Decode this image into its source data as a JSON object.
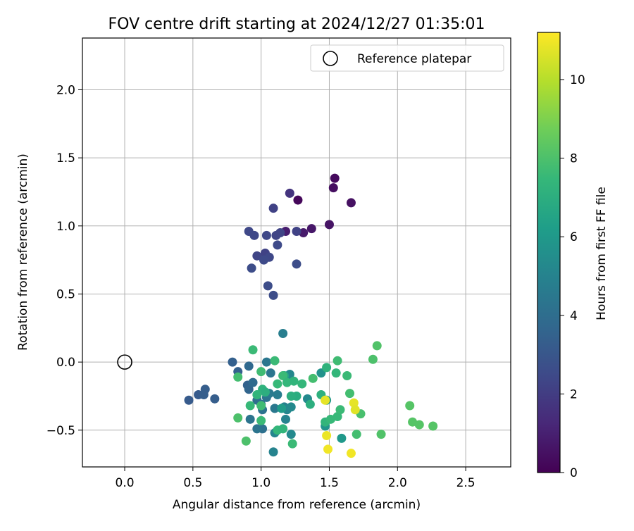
{
  "chart_data": {
    "type": "scatter",
    "title": "FOV centre drift starting at 2024/12/27 01:35:01",
    "xlabel": "Angular distance from reference (arcmin)",
    "ylabel": "Rotation from reference (arcmin)",
    "xlim": [
      -0.31,
      2.83
    ],
    "ylim": [
      -0.77,
      2.38
    ],
    "xticks": [
      0.0,
      0.5,
      1.0,
      1.5,
      2.0,
      2.5
    ],
    "xtick_labels": [
      "0.0",
      "0.5",
      "1.0",
      "1.5",
      "2.0",
      "2.5"
    ],
    "yticks": [
      -0.5,
      0.0,
      0.5,
      1.0,
      1.5,
      2.0
    ],
    "ytick_labels": [
      "−0.5",
      "0.0",
      "0.5",
      "1.0",
      "1.5",
      "2.0"
    ],
    "grid": true,
    "legend": {
      "position": "top-right",
      "label": "Reference platepar",
      "marker": "open-circle"
    },
    "reference_point": {
      "x": 0.0,
      "y": 0.0
    },
    "colorbar": {
      "label": "Hours from first FF file",
      "colormap": "viridis",
      "range": [
        0,
        11.2
      ],
      "ticks": [
        0,
        2,
        4,
        6,
        8,
        10
      ],
      "tick_labels": [
        "0",
        "2",
        "4",
        "6",
        "8",
        "10"
      ]
    },
    "points": [
      {
        "x": 1.27,
        "y": 1.19,
        "h": 0.2
      },
      {
        "x": 1.54,
        "y": 1.35,
        "h": 0.3
      },
      {
        "x": 1.53,
        "y": 1.28,
        "h": 0.4
      },
      {
        "x": 1.66,
        "y": 1.17,
        "h": 0.5
      },
      {
        "x": 1.5,
        "y": 1.01,
        "h": 0.6
      },
      {
        "x": 1.37,
        "y": 0.98,
        "h": 0.7
      },
      {
        "x": 1.31,
        "y": 0.95,
        "h": 0.8
      },
      {
        "x": 1.18,
        "y": 0.96,
        "h": 0.9
      },
      {
        "x": 1.21,
        "y": 1.24,
        "h": 1.7
      },
      {
        "x": 1.09,
        "y": 1.13,
        "h": 2.2
      },
      {
        "x": 0.91,
        "y": 0.96,
        "h": 2.4
      },
      {
        "x": 0.95,
        "y": 0.93,
        "h": 2.4
      },
      {
        "x": 1.04,
        "y": 0.93,
        "h": 2.4
      },
      {
        "x": 1.11,
        "y": 0.93,
        "h": 2.3
      },
      {
        "x": 1.14,
        "y": 0.95,
        "h": 2.3
      },
      {
        "x": 1.26,
        "y": 0.96,
        "h": 2.2
      },
      {
        "x": 1.03,
        "y": 0.8,
        "h": 2.2
      },
      {
        "x": 0.97,
        "y": 0.78,
        "h": 2.3
      },
      {
        "x": 1.06,
        "y": 0.77,
        "h": 2.4
      },
      {
        "x": 1.02,
        "y": 0.75,
        "h": 2.5
      },
      {
        "x": 1.12,
        "y": 0.86,
        "h": 2.5
      },
      {
        "x": 0.93,
        "y": 0.69,
        "h": 2.6
      },
      {
        "x": 1.26,
        "y": 0.72,
        "h": 2.6
      },
      {
        "x": 1.05,
        "y": 0.56,
        "h": 2.6
      },
      {
        "x": 1.09,
        "y": 0.49,
        "h": 2.6
      },
      {
        "x": 0.47,
        "y": -0.28,
        "h": 3.2
      },
      {
        "x": 0.54,
        "y": -0.24,
        "h": 3.2
      },
      {
        "x": 0.58,
        "y": -0.24,
        "h": 3.3
      },
      {
        "x": 0.59,
        "y": -0.2,
        "h": 3.3
      },
      {
        "x": 0.66,
        "y": -0.27,
        "h": 3.3
      },
      {
        "x": 0.79,
        "y": 0.0,
        "h": 3.4
      },
      {
        "x": 0.83,
        "y": -0.07,
        "h": 3.4
      },
      {
        "x": 0.9,
        "y": -0.17,
        "h": 3.5
      },
      {
        "x": 0.91,
        "y": -0.2,
        "h": 3.6
      },
      {
        "x": 0.91,
        "y": -0.03,
        "h": 3.8
      },
      {
        "x": 0.94,
        "y": -0.15,
        "h": 3.9
      },
      {
        "x": 0.97,
        "y": -0.28,
        "h": 4.0
      },
      {
        "x": 1.0,
        "y": -0.31,
        "h": 4.1
      },
      {
        "x": 1.01,
        "y": -0.35,
        "h": 4.2
      },
      {
        "x": 1.04,
        "y": -0.26,
        "h": 4.3
      },
      {
        "x": 1.04,
        "y": 0.0,
        "h": 4.4
      },
      {
        "x": 1.06,
        "y": -0.23,
        "h": 4.6
      },
      {
        "x": 1.07,
        "y": -0.08,
        "h": 4.4
      },
      {
        "x": 1.1,
        "y": -0.34,
        "h": 4.5
      },
      {
        "x": 1.12,
        "y": -0.24,
        "h": 4.7
      },
      {
        "x": 1.16,
        "y": 0.21,
        "h": 4.8
      },
      {
        "x": 1.17,
        "y": -0.33,
        "h": 4.9
      },
      {
        "x": 1.18,
        "y": -0.42,
        "h": 5.0
      },
      {
        "x": 1.19,
        "y": -0.35,
        "h": 5.1
      },
      {
        "x": 1.21,
        "y": -0.09,
        "h": 5.2
      },
      {
        "x": 1.22,
        "y": -0.33,
        "h": 5.3
      },
      {
        "x": 1.22,
        "y": -0.53,
        "h": 5.3
      },
      {
        "x": 1.09,
        "y": -0.66,
        "h": 5.0
      },
      {
        "x": 1.1,
        "y": -0.52,
        "h": 5.1
      },
      {
        "x": 0.92,
        "y": -0.42,
        "h": 4.3
      },
      {
        "x": 1.01,
        "y": -0.49,
        "h": 4.1
      },
      {
        "x": 0.97,
        "y": -0.49,
        "h": 4.3
      },
      {
        "x": 1.34,
        "y": -0.27,
        "h": 5.3
      },
      {
        "x": 1.44,
        "y": -0.08,
        "h": 5.7
      },
      {
        "x": 1.47,
        "y": -0.47,
        "h": 5.8
      },
      {
        "x": 1.48,
        "y": -0.28,
        "h": 5.9
      },
      {
        "x": 1.59,
        "y": -0.56,
        "h": 6.0
      },
      {
        "x": 1.15,
        "y": -0.34,
        "h": 6.1
      },
      {
        "x": 1.17,
        "y": -0.1,
        "h": 6.5
      },
      {
        "x": 1.26,
        "y": -0.25,
        "h": 6.9
      },
      {
        "x": 1.36,
        "y": -0.31,
        "h": 7.0
      },
      {
        "x": 1.44,
        "y": -0.24,
        "h": 7.1
      },
      {
        "x": 1.47,
        "y": -0.44,
        "h": 7.3
      },
      {
        "x": 1.48,
        "y": -0.04,
        "h": 7.2
      },
      {
        "x": 1.55,
        "y": -0.08,
        "h": 7.4
      },
      {
        "x": 1.56,
        "y": -0.4,
        "h": 7.5
      },
      {
        "x": 1.58,
        "y": -0.35,
        "h": 7.6
      },
      {
        "x": 1.63,
        "y": -0.1,
        "h": 7.6
      },
      {
        "x": 1.65,
        "y": -0.23,
        "h": 7.8
      },
      {
        "x": 1.7,
        "y": -0.53,
        "h": 7.8
      },
      {
        "x": 1.73,
        "y": -0.38,
        "h": 7.9
      },
      {
        "x": 1.82,
        "y": 0.02,
        "h": 8.0
      },
      {
        "x": 1.85,
        "y": 0.12,
        "h": 8.1
      },
      {
        "x": 1.88,
        "y": -0.53,
        "h": 8.1
      },
      {
        "x": 2.09,
        "y": -0.32,
        "h": 8.2
      },
      {
        "x": 2.11,
        "y": -0.44,
        "h": 8.2
      },
      {
        "x": 2.16,
        "y": -0.46,
        "h": 8.2
      },
      {
        "x": 2.26,
        "y": -0.47,
        "h": 8.2
      },
      {
        "x": 1.56,
        "y": 0.01,
        "h": 7.7
      },
      {
        "x": 1.51,
        "y": -0.42,
        "h": 7.5
      },
      {
        "x": 0.94,
        "y": 0.09,
        "h": 7.6
      },
      {
        "x": 1.1,
        "y": 0.01,
        "h": 7.6
      },
      {
        "x": 1.0,
        "y": -0.07,
        "h": 7.7
      },
      {
        "x": 1.12,
        "y": -0.16,
        "h": 7.5
      },
      {
        "x": 1.16,
        "y": -0.1,
        "h": 7.6
      },
      {
        "x": 1.19,
        "y": -0.15,
        "h": 7.4
      },
      {
        "x": 1.24,
        "y": -0.14,
        "h": 7.3
      },
      {
        "x": 1.3,
        "y": -0.16,
        "h": 7.4
      },
      {
        "x": 1.38,
        "y": -0.12,
        "h": 7.8
      },
      {
        "x": 1.22,
        "y": -0.25,
        "h": 7.0
      },
      {
        "x": 1.01,
        "y": -0.2,
        "h": 7.2
      },
      {
        "x": 1.03,
        "y": -0.22,
        "h": 7.0
      },
      {
        "x": 0.97,
        "y": -0.24,
        "h": 7.3
      },
      {
        "x": 0.92,
        "y": -0.32,
        "h": 7.5
      },
      {
        "x": 1.0,
        "y": -0.32,
        "h": 7.7
      },
      {
        "x": 0.83,
        "y": -0.11,
        "h": 7.8
      },
      {
        "x": 0.83,
        "y": -0.41,
        "h": 8.0
      },
      {
        "x": 0.89,
        "y": -0.58,
        "h": 8.0
      },
      {
        "x": 1.0,
        "y": -0.43,
        "h": 7.6
      },
      {
        "x": 1.12,
        "y": -0.5,
        "h": 7.4
      },
      {
        "x": 1.16,
        "y": -0.49,
        "h": 7.3
      },
      {
        "x": 1.23,
        "y": -0.6,
        "h": 7.6
      },
      {
        "x": 1.47,
        "y": -0.28,
        "h": 10.8
      },
      {
        "x": 1.48,
        "y": -0.54,
        "h": 10.9
      },
      {
        "x": 1.49,
        "y": -0.64,
        "h": 11.0
      },
      {
        "x": 1.66,
        "y": -0.67,
        "h": 11.0
      },
      {
        "x": 1.68,
        "y": -0.3,
        "h": 10.8
      },
      {
        "x": 1.69,
        "y": -0.35,
        "h": 10.7
      }
    ]
  }
}
